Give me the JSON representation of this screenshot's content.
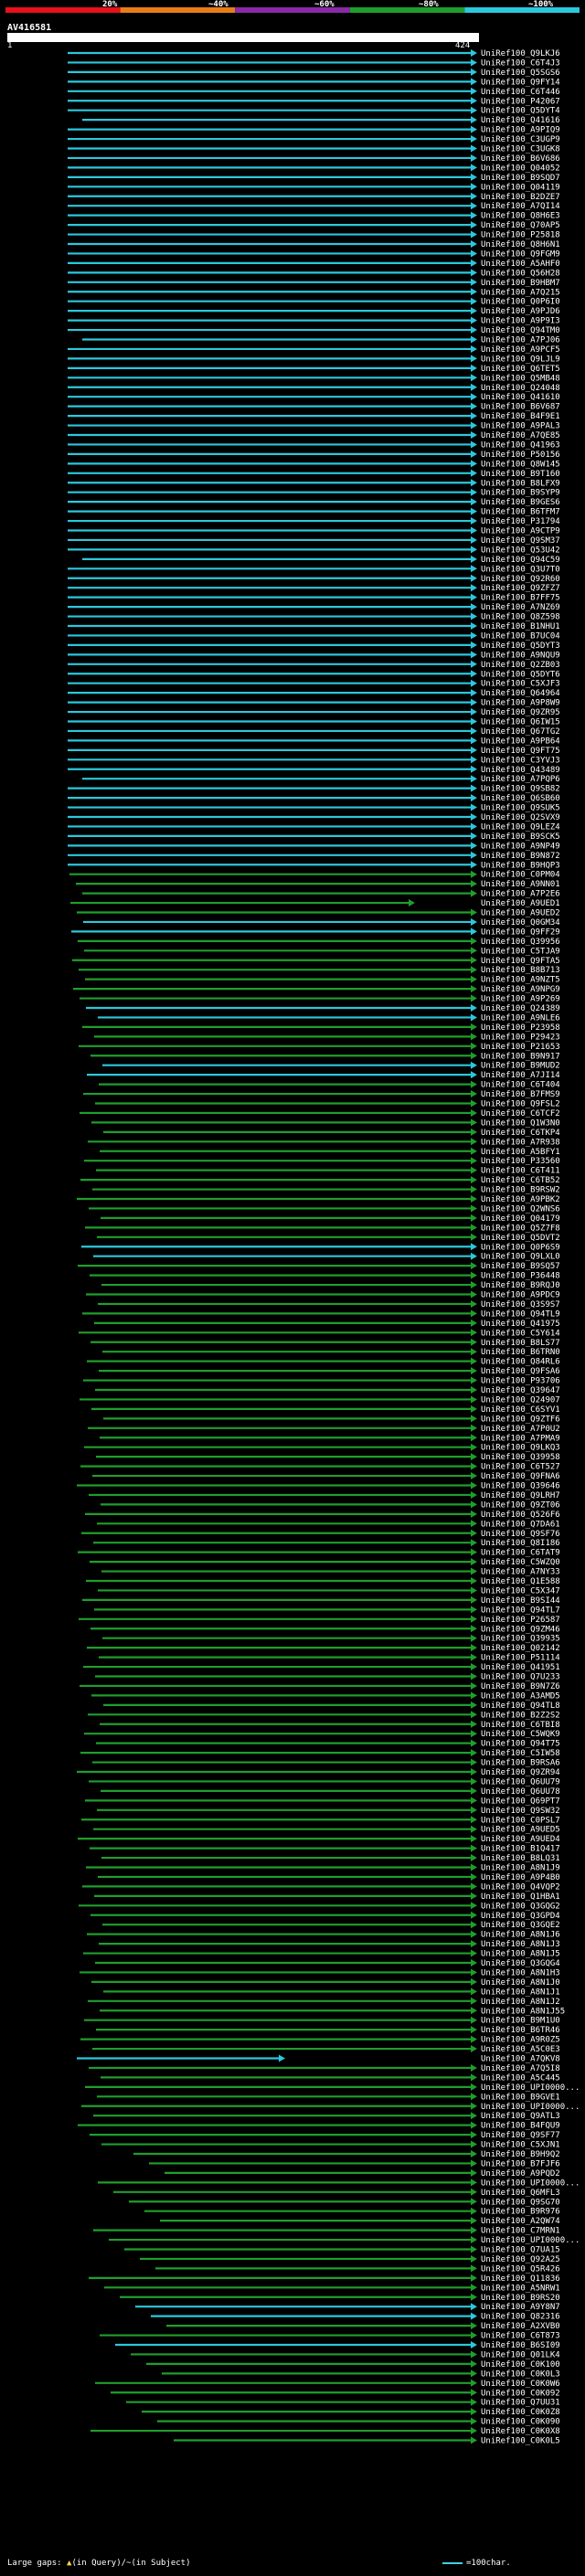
{
  "title": "AV416581",
  "ruler": {
    "start": "1",
    "end": "424"
  },
  "identity_legend": [
    {
      "label": "20%",
      "color": "#e8101a"
    },
    {
      "label": "~40%",
      "color": "#e87d16"
    },
    {
      "label": "~60%",
      "color": "#8a2aa8"
    },
    {
      "label": "~80%",
      "color": "#1f9e2c"
    },
    {
      "label": "~100%",
      "color": "#2bc8dc"
    }
  ],
  "footer": {
    "gaps_label": "Large gaps:",
    "query_gap": "(in Query)/",
    "subject_gap": "~(in Subject)",
    "scale_label": "=100char."
  },
  "hits": [
    "UniRef100_Q9LKJ6",
    "UniRef100_C6T4J3",
    "UniRef100_Q5SGS6",
    "UniRef100_Q9FY14",
    "UniRef100_C6T446",
    "UniRef100_P42067",
    "UniRef100_Q5DYT4",
    "UniRef100_Q41616",
    "UniRef100_A9PIQ9",
    "UniRef100_C3UGP9",
    "UniRef100_C3UGK8",
    "UniRef100_B6V686",
    "UniRef100_Q04052",
    "UniRef100_B9SQD7",
    "UniRef100_Q04119",
    "UniRef100_B2DZE7",
    "UniRef100_A7QI14",
    "UniRef100_Q8H6E3",
    "UniRef100_Q70AP5",
    "UniRef100_P25818",
    "UniRef100_Q8H6N1",
    "UniRef100_Q9FGM9",
    "UniRef100_A5AHF0",
    "UniRef100_Q56H28",
    "UniRef100_B9HBM7",
    "UniRef100_A7Q215",
    "UniRef100_Q0P6I0",
    "UniRef100_A9PJD6",
    "UniRef100_A9P9I3",
    "UniRef100_Q94TM0",
    "UniRef100_A7PJ06",
    "UniRef100_A9PCF5",
    "UniRef100_Q9LJL9",
    "UniRef100_Q6TET5",
    "UniRef100_Q5MB48",
    "UniRef100_Q24048",
    "UniRef100_Q41610",
    "UniRef100_B6V687",
    "UniRef100_B4F9E1",
    "UniRef100_A9PAL3",
    "UniRef100_A7QE85",
    "UniRef100_Q41963",
    "UniRef100_P50156",
    "UniRef100_Q8W145",
    "UniRef100_B9T160",
    "UniRef100_B8LFX9",
    "UniRef100_B9SYP9",
    "UniRef100_B9GES6",
    "UniRef100_B6TFM7",
    "UniRef100_P31794",
    "UniRef100_A9CTP9",
    "UniRef100_Q9SM37",
    "UniRef100_Q53U42",
    "UniRef100_Q94C59",
    "UniRef100_Q3U7T0",
    "UniRef100_Q92R60",
    "UniRef100_Q9ZFZ7",
    "UniRef100_B7FF75",
    "UniRef100_A7NZ69",
    "UniRef100_Q8Z598",
    "UniRef100_B1NHU1",
    "UniRef100_B7UC04",
    "UniRef100_Q5DYT3",
    "UniRef100_A9NQU9",
    "UniRef100_Q2ZB03",
    "UniRef100_Q5DYT6",
    "UniRef100_C5XJF3",
    "UniRef100_Q64964",
    "UniRef100_A9P8W9",
    "UniRef100_Q9ZR95",
    "UniRef100_Q6IW15",
    "UniRef100_Q67TG2",
    "UniRef100_A9PB64",
    "UniRef100_Q9FT75",
    "UniRef100_C3YVJ3",
    "UniRef100_Q43489",
    "UniRef100_A7PQP6",
    "UniRef100_Q9SB82",
    "UniRef100_Q6SB60",
    "UniRef100_Q9SUK5",
    "UniRef100_Q2SVX9",
    "UniRef100_Q9LEZ4",
    "UniRef100_B9SCK5",
    "UniRef100_A9NP49",
    "UniRef100_B9N872",
    "UniRef100_B9HQP3",
    "UniRef100_C0PM04",
    "UniRef100_A9NN01",
    "UniRef100_A7P2E6",
    "UniRef100_A9UED1",
    "UniRef100_A9UED2",
    "UniRef100_Q0GM34",
    "UniRef100_Q9FF29",
    "UniRef100_Q39956",
    "UniRef100_C5TJA9",
    "UniRef100_Q9FTA5",
    "UniRef100_B8B713",
    "UniRef100_A9NZT5",
    "UniRef100_A9NPG9",
    "UniRef100_A9P269",
    "UniRef100_Q24389",
    "UniRef100_A9NLE6",
    "UniRef100_P23958",
    "UniRef100_P29423",
    "UniRef100_P21653",
    "UniRef100_B9N917",
    "UniRef100_B9MUD2",
    "UniRef100_A7JI14",
    "UniRef100_C6T404",
    "UniRef100_B7FMS9",
    "UniRef100_Q9FSL2",
    "UniRef100_C6TCF2",
    "UniRef100_Q1W3N0",
    "UniRef100_C6TKP4",
    "UniRef100_A7R938",
    "UniRef100_A5BFY1",
    "UniRef100_P33560",
    "UniRef100_C6T411",
    "UniRef100_C6TB52",
    "UniRef100_B9RSW2",
    "UniRef100_A9PBK2",
    "UniRef100_Q2WNS6",
    "UniRef100_Q04179",
    "UniRef100_Q5Z7F8",
    "UniRef100_Q5DVT2",
    "UniRef100_Q0P6S9",
    "UniRef100_Q9LXL0",
    "UniRef100_B9SQ57",
    "UniRef100_P36448",
    "UniRef100_B9RQJ0",
    "UniRef100_A9PDC9",
    "UniRef100_Q3S9S7",
    "UniRef100_Q94TL9",
    "UniRef100_Q41975",
    "UniRef100_C5Y614",
    "UniRef100_B8LS77",
    "UniRef100_B6TRN0",
    "UniRef100_Q84RL6",
    "UniRef100_Q9FSA6",
    "UniRef100_P93706",
    "UniRef100_Q39647",
    "UniRef100_Q24907",
    "UniRef100_C6SYV1",
    "UniRef100_Q9ZTF6",
    "UniRef100_A7P0U2",
    "UniRef100_A7PMA9",
    "UniRef100_Q9LKQ3",
    "UniRef100_Q39958",
    "UniRef100_C6T527",
    "UniRef100_Q9FNA6",
    "UniRef100_Q39646",
    "UniRef100_Q9LRH7",
    "UniRef100_Q9ZT06",
    "UniRef100_Q526F6",
    "UniRef100_Q7DA61",
    "UniRef100_Q9SF76",
    "UniRef100_Q8I186",
    "UniRef100_C6TAT9",
    "UniRef100_C5WZQ0",
    "UniRef100_A7NY33",
    "UniRef100_Q1E588",
    "UniRef100_C5X347",
    "UniRef100_B9SI44",
    "UniRef100_Q94TL7",
    "UniRef100_P26587",
    "UniRef100_Q9ZM46",
    "UniRef100_Q39935",
    "UniRef100_Q02142",
    "UniRef100_P51114",
    "UniRef100_Q41951",
    "UniRef100_Q7U233",
    "UniRef100_B9N7Z6",
    "UniRef100_A3AMD5",
    "UniRef100_Q94TL8",
    "UniRef100_B2Z2S2",
    "UniRef100_C6TBI8",
    "UniRef100_C5WQK9",
    "UniRef100_Q94T75",
    "UniRef100_C5IW58",
    "UniRef100_B9RSA6",
    "UniRef100_Q9ZR94",
    "UniRef100_Q6UU79",
    "UniRef100_Q6UU78",
    "UniRef100_Q69PT7",
    "UniRef100_Q9SW32",
    "UniRef100_C0PSL7",
    "UniRef100_A9UED5",
    "UniRef100_A9UED4",
    "UniRef100_B1Q417",
    "UniRef100_B8LQ31",
    "UniRef100_A8N1J9",
    "UniRef100_A9P4B0",
    "UniRef100_Q4VQP2",
    "UniRef100_Q1HBA1",
    "UniRef100_Q3GQG2",
    "UniRef100_Q3GPD4",
    "UniRef100_Q3GQE2",
    "UniRef100_A8N1J6",
    "UniRef100_A8N1J3",
    "UniRef100_A8N1J5",
    "UniRef100_Q3GQG4",
    "UniRef100_A8N1H3",
    "UniRef100_A8N1J0",
    "UniRef100_A8N1J1",
    "UniRef100_A8N1J2",
    "UniRef100_A8N1J55",
    "UniRef100_B9M1U0",
    "UniRef100_B6TR46",
    "UniRef100_A9R0Z5",
    "UniRef100_A5C0E3",
    "UniRef100_A7QKV8",
    "UniRef100_A7Q5I8",
    "UniRef100_A5C445",
    "UniRef100_UPI0000...",
    "UniRef100_B9GVE1",
    "UniRef100_UPI0000...",
    "UniRef100_Q9ATL3",
    "UniRef100_B4FQU9",
    "UniRef100_Q9SF77",
    "UniRef100_C5XJN1",
    "UniRef100_B9H9Q2",
    "UniRef100_B7FJF6",
    "UniRef100_A9PQD2",
    "UniRef100_UPI0000...",
    "UniRef100_Q6MFL3",
    "UniRef100_Q9SG70",
    "UniRef100_B9R976",
    "UniRef100_A2QW74",
    "UniRef100_C7MRN1",
    "UniRef100_UPI0000...",
    "UniRef100_Q7UA15",
    "UniRef100_Q92A25",
    "UniRef100_Q5R426",
    "UniRef100_Q11836",
    "UniRef100_A5NRW1",
    "UniRef100_B9RS20",
    "UniRef100_A9Y8N7",
    "UniRef100_Q82316",
    "UniRef100_A2XVB0",
    "UniRef100_C6T873",
    "UniRef100_B6SI09",
    "UniRef100_Q01LK4",
    "UniRef100_C0K100",
    "UniRef100_C0K0L3",
    "UniRef100_C0K0W6",
    "UniRef100_C0K092",
    "UniRef100_Q7UU31",
    "UniRef100_C0K0Z8",
    "UniRef100_C0K090",
    "UniRef100_C0K0X8",
    "UniRef100_C0K0L5"
  ]
}
